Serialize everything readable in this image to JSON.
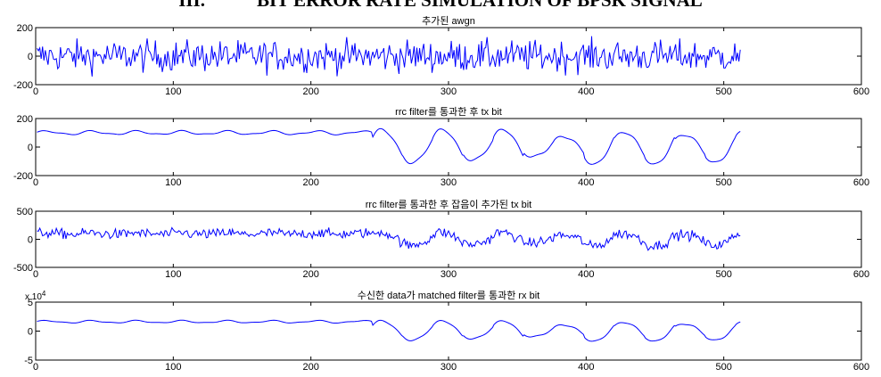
{
  "page": {
    "heading_number": "III.",
    "heading_text": "BIT ERROR RATE SIMULATION OF BPSK SIGNAL"
  },
  "chart_data": [
    {
      "type": "line",
      "title": "추가된 awgn",
      "xlim": [
        0,
        600
      ],
      "ylim": [
        -200,
        200
      ],
      "xticks": [
        0,
        100,
        200,
        300,
        400,
        500,
        600
      ],
      "yticks": [
        -200,
        0,
        200
      ],
      "xtick_labels": [
        "0",
        "100",
        "200",
        "300",
        "400",
        "500",
        "600"
      ],
      "ytick_labels": [
        "-200",
        "0",
        "200"
      ],
      "exponent_label": "",
      "grid": false,
      "series": [
        {
          "color": "#0000ff",
          "x_range": [
            1,
            512
          ],
          "points": 512,
          "description": "random noise, amplitude about ±150"
        }
      ]
    },
    {
      "type": "line",
      "title": "rrc filter를 통과한 후 tx bit",
      "xlim": [
        0,
        600
      ],
      "ylim": [
        -200,
        200
      ],
      "xticks": [
        0,
        100,
        200,
        300,
        400,
        500,
        600
      ],
      "yticks": [
        -200,
        0,
        200
      ],
      "xtick_labels": [
        "0",
        "100",
        "200",
        "300",
        "400",
        "500",
        "600"
      ],
      "ytick_labels": [
        "-200",
        "0",
        "200"
      ],
      "exponent_label": "",
      "grid": false,
      "series": [
        {
          "color": "#0000ff",
          "x_range": [
            1,
            512
          ],
          "points": 512,
          "level_before_245": 100,
          "peak_amplitude_after_245": 125
        }
      ]
    },
    {
      "type": "line",
      "title": "rrc filter를 통과한 후 잡음이 추가된 tx bit",
      "xlim": [
        0,
        600
      ],
      "ylim": [
        -500,
        500
      ],
      "xticks": [
        0,
        100,
        200,
        300,
        400,
        500,
        600
      ],
      "yticks": [
        -500,
        0,
        500
      ],
      "xtick_labels": [
        "0",
        "100",
        "200",
        "300",
        "400",
        "500",
        "600"
      ],
      "ytick_labels": [
        "-500",
        "0",
        "500"
      ],
      "exponent_label": "",
      "grid": false,
      "series": [
        {
          "color": "#0000ff",
          "x_range": [
            1,
            512
          ],
          "points": 512,
          "description": "filtered signal plus noise"
        }
      ]
    },
    {
      "type": "line",
      "title": "수신한 data가 matched filter를 통과한 rx bit",
      "xlim": [
        0,
        600
      ],
      "ylim": [
        -5,
        5
      ],
      "xticks": [
        0,
        100,
        200,
        300,
        400,
        500,
        600
      ],
      "yticks": [
        -5,
        0,
        5
      ],
      "xtick_labels": [
        "0",
        "100",
        "200",
        "300",
        "400",
        "500",
        "600"
      ],
      "ytick_labels": [
        "-5",
        "0",
        "5"
      ],
      "exponent_label": "x 10",
      "exponent_power": "4",
      "grid": false,
      "series": [
        {
          "color": "#0000ff",
          "x_range": [
            1,
            512
          ],
          "points": 512,
          "level_before_245": 1.7,
          "peak_amplitude_after_245": 1.9
        }
      ]
    }
  ]
}
